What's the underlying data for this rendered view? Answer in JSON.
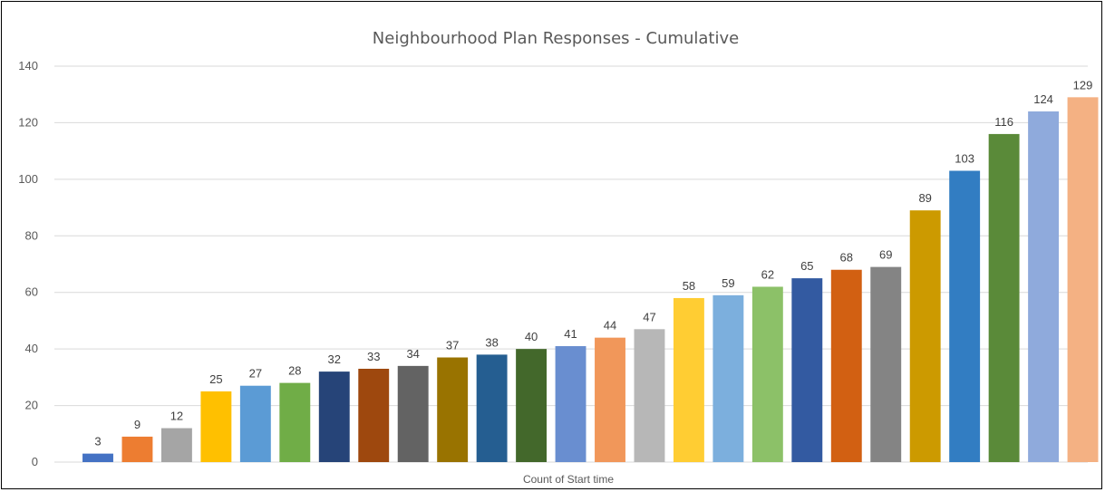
{
  "chart_data": {
    "type": "bar",
    "title": "Neighbourhood Plan Responses - Cumulative",
    "xlabel": "Count of Start time",
    "ylabel": "",
    "ylim": [
      0,
      140
    ],
    "yticks": [
      0,
      20,
      40,
      60,
      80,
      100,
      120,
      140
    ],
    "grid": true,
    "values": [
      3,
      9,
      12,
      25,
      27,
      28,
      32,
      33,
      34,
      37,
      38,
      40,
      41,
      44,
      47,
      58,
      59,
      62,
      65,
      68,
      69,
      89,
      103,
      116,
      124,
      129
    ],
    "colors": [
      "#4472C4",
      "#ED7D31",
      "#A5A5A5",
      "#FFC000",
      "#5B9BD5",
      "#70AD47",
      "#264478",
      "#9E480E",
      "#636363",
      "#997300",
      "#255E91",
      "#43682B",
      "#698ED0",
      "#F1975A",
      "#B7B7B7",
      "#FFCD33",
      "#7CAFDD",
      "#8CC168",
      "#335AA1",
      "#D26012",
      "#848484",
      "#CC9A00",
      "#327DC2",
      "#5A8A39",
      "#8FAADC",
      "#F4B183"
    ]
  }
}
